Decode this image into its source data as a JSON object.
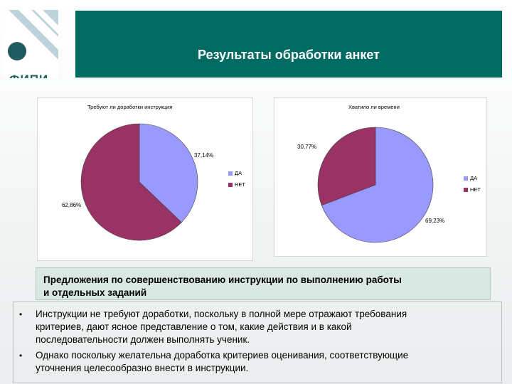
{
  "logo": {
    "text": "ФИПИ"
  },
  "header": {
    "title": "Результаты обработки анкет"
  },
  "chart_data": [
    {
      "type": "pie",
      "title": "Требуют ли доработки инструкция",
      "categories": [
        "ДА",
        "НЕТ"
      ],
      "values": [
        37.14,
        62.86
      ],
      "labels": [
        "37,14%",
        "62,86%"
      ],
      "colors": [
        "#9999ff",
        "#993366"
      ],
      "legend": "right"
    },
    {
      "type": "pie",
      "title": "Хватило ли времени",
      "categories": [
        "ДА",
        "НЕТ"
      ],
      "values": [
        69.23,
        30.77
      ],
      "labels": [
        "69,23%",
        "30,77%"
      ],
      "colors": [
        "#9999ff",
        "#993366"
      ],
      "legend": "right"
    }
  ],
  "subtitle": {
    "line1": "Предложения по совершенствованию инструкции по выполнению работы",
    "line2": "и отдельных заданий"
  },
  "bullets": [
    {
      "symbol": "•",
      "lines": [
        "Инструкции не требуют доработки, поскольку в полной мере отражают требования",
        "критериев, дают ясное представление о том, какие действия и в какой",
        "последовательности должен выполнять ученик."
      ]
    },
    {
      "symbol": "•",
      "lines": [
        "Однако поскольку желательна доработка критериев оценивания, соответствующие",
        "уточнения целесообразно  внести в инструкции."
      ]
    }
  ]
}
